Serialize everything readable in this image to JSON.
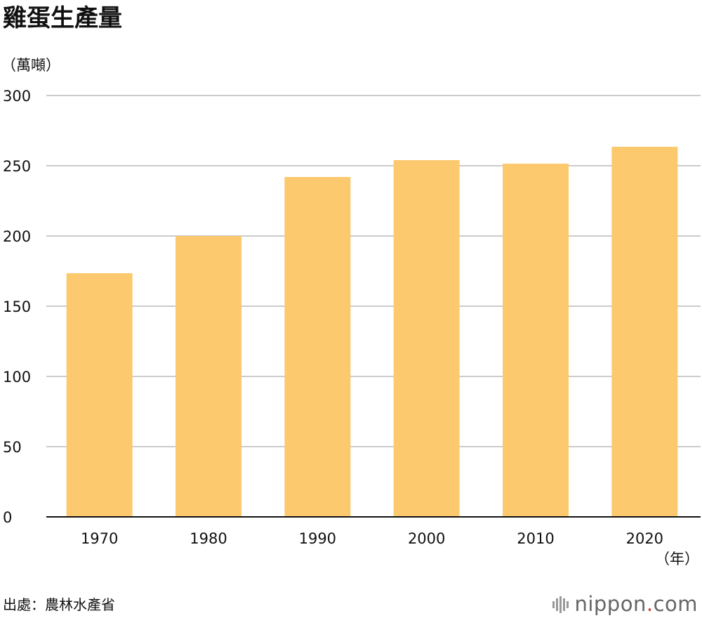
{
  "chart_data": {
    "type": "bar",
    "title": "雞蛋生產量",
    "ylabel": "（萬噸）",
    "xlabel": "（年）",
    "categories": [
      "1970",
      "1980",
      "1990",
      "2000",
      "2010",
      "2020"
    ],
    "values": [
      173.5,
      200,
      242,
      254,
      251.5,
      263.5
    ],
    "ylim": [
      0,
      300
    ],
    "yticks": [
      0,
      50,
      100,
      150,
      200,
      250,
      300
    ],
    "grid": true,
    "bar_color": "#fcc96e",
    "source": "出處：農林水產省"
  },
  "brand": {
    "prefix": "nippon",
    "dot": ".",
    "suffix": "com",
    "dot_color": "#d9312b",
    "icon": "nippon-bars-icon"
  }
}
